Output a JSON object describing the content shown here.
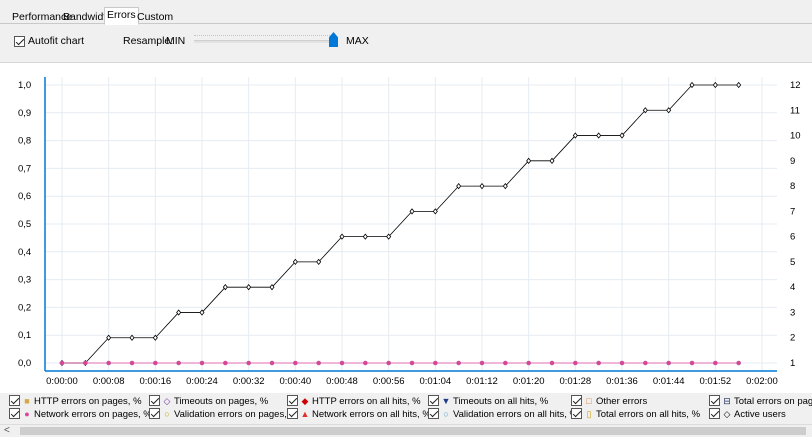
{
  "tabs": [
    {
      "label": "Performance",
      "active": false
    },
    {
      "label": "Bandwidth",
      "active": false
    },
    {
      "label": "Errors",
      "active": true
    },
    {
      "label": "Custom",
      "active": false
    }
  ],
  "toolbar": {
    "autofit_label": "Autofit chart",
    "autofit_checked": true,
    "resample_label": "Resample:",
    "min_label": "MIN",
    "max_label": "MAX",
    "resample_level": 1.0,
    "accent_color": "#0078d7"
  },
  "chart_data": {
    "type": "line",
    "x_ticks": [
      "0:00:00",
      "0:00:08",
      "0:00:16",
      "0:00:24",
      "0:00:32",
      "0:00:40",
      "0:00:48",
      "0:00:56",
      "0:01:04",
      "0:01:12",
      "0:01:20",
      "0:01:28",
      "0:01:36",
      "0:01:44",
      "0:01:52",
      "0:02:00"
    ],
    "y_left_ticks": [
      "0,0",
      "0,1",
      "0,2",
      "0,3",
      "0,4",
      "0,5",
      "0,6",
      "0,7",
      "0,8",
      "0,9",
      "1,0"
    ],
    "y_right_ticks": [
      "1",
      "2",
      "3",
      "4",
      "5",
      "6",
      "7",
      "8",
      "9",
      "10",
      "11",
      "12"
    ],
    "ylim_left": [
      0,
      1
    ],
    "ylim_right": [
      1,
      12
    ],
    "grid": true,
    "series": [
      {
        "name": "Active users",
        "axis": "right",
        "color": "#000000",
        "marker": "diamond",
        "x": [
          "0:00:00",
          "0:00:04",
          "0:00:08",
          "0:00:12",
          "0:00:16",
          "0:00:20",
          "0:00:24",
          "0:00:28",
          "0:00:32",
          "0:00:36",
          "0:00:40",
          "0:00:44",
          "0:00:48",
          "0:00:52",
          "0:00:56",
          "0:01:00",
          "0:01:04",
          "0:01:08",
          "0:01:12",
          "0:01:16",
          "0:01:20",
          "0:01:24",
          "0:01:28",
          "0:01:32",
          "0:01:36",
          "0:01:40",
          "0:01:44",
          "0:01:48",
          "0:01:52",
          "0:01:56"
        ],
        "values": [
          1,
          1,
          2,
          2,
          2,
          3,
          3,
          4,
          4,
          4,
          5,
          5,
          6,
          6,
          6,
          7,
          7,
          8,
          8,
          8,
          9,
          9,
          10,
          10,
          10,
          11,
          11,
          12,
          12,
          12
        ]
      },
      {
        "name": "Network errors on pages, %",
        "axis": "left",
        "color": "#e0409a",
        "marker": "circle",
        "x": [
          "0:00:00",
          "0:00:04",
          "0:00:08",
          "0:00:12",
          "0:00:16",
          "0:00:20",
          "0:00:24",
          "0:00:28",
          "0:00:32",
          "0:00:36",
          "0:00:40",
          "0:00:44",
          "0:00:48",
          "0:00:52",
          "0:00:56",
          "0:01:00",
          "0:01:04",
          "0:01:08",
          "0:01:12",
          "0:01:16",
          "0:01:20",
          "0:01:24",
          "0:01:28",
          "0:01:32",
          "0:01:36",
          "0:01:40",
          "0:01:44",
          "0:01:48",
          "0:01:52",
          "0:01:56"
        ],
        "values": [
          0,
          0,
          0,
          0,
          0,
          0,
          0,
          0,
          0,
          0,
          0,
          0,
          0,
          0,
          0,
          0,
          0,
          0,
          0,
          0,
          0,
          0,
          0,
          0,
          0,
          0,
          0,
          0,
          0,
          0
        ]
      }
    ]
  },
  "legend": {
    "items": [
      {
        "label": "HTTP errors on pages, %",
        "icon": "square-icon",
        "symbol": "■",
        "color": "#d4a84a"
      },
      {
        "label": "Network errors on pages, %",
        "icon": "circle-icon",
        "symbol": "●",
        "color": "#e0409a"
      },
      {
        "label": "Timeouts on pages, %",
        "icon": "circle-open-icon",
        "symbol": "◇",
        "color": "#7030a0"
      },
      {
        "label": "Validation errors on pages, %",
        "icon": "circle-open-icon",
        "symbol": "○",
        "color": "#c8a000"
      },
      {
        "label": "HTTP errors on all hits, %",
        "icon": "diamond-icon",
        "symbol": "◆",
        "color": "#cc0000"
      },
      {
        "label": "Network errors on all hits, %",
        "icon": "triangle-icon",
        "symbol": "▲",
        "color": "#e03030"
      },
      {
        "label": "Timeouts on all hits, %",
        "icon": "triangle-down-icon",
        "symbol": "▼",
        "color": "#1f3a8a"
      },
      {
        "label": "Validation errors on all hits, %",
        "icon": "circle-open-icon",
        "symbol": "○",
        "color": "#40a0d0"
      },
      {
        "label": "Other errors",
        "icon": "square-open-icon",
        "symbol": "□",
        "color": "#e08030"
      },
      {
        "label": "Total errors on all hits, %",
        "icon": "rect-open-icon",
        "symbol": "▯",
        "color": "#d4a000"
      },
      {
        "label": "Total errors on pages,",
        "icon": "bar-icon",
        "symbol": "⊟",
        "color": "#203060"
      },
      {
        "label": "Active users",
        "icon": "diamond-open-icon",
        "symbol": "◇",
        "color": "#000000"
      }
    ]
  },
  "scrollbar": {
    "left_arrow": "<"
  }
}
